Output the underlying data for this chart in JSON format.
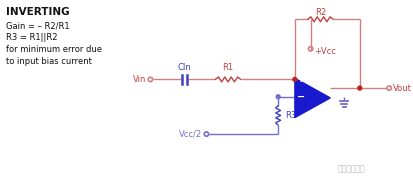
{
  "title": "INVERTING",
  "text_lines": [
    "Gain = – R2/R1",
    "R3 = R1||R2",
    "for minimum error due",
    "to input bias current"
  ],
  "bg_color": "#ffffff",
  "wire_color_red": "#d08080",
  "wire_color_blue": "#7070d0",
  "resistor_color_red": "#c04040",
  "resistor_color_blue": "#4040c0",
  "opamp_fill": "#1818cc",
  "label_color_red": "#c04040",
  "label_color_blue": "#4040c0",
  "label_color_black": "#111111",
  "watermark": "张飞实驗电子"
}
